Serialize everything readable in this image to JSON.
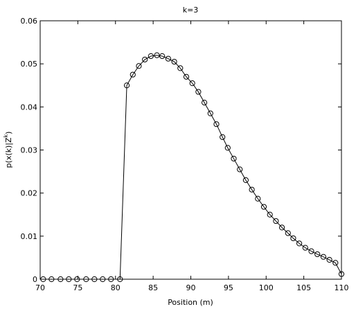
{
  "chart_data": {
    "type": "line",
    "title": "k=3",
    "xlabel": "Position (m)",
    "ylabel": {
      "base": "p(x(k)|Z",
      "sup": "k",
      "tail": ")"
    },
    "xlim": [
      70,
      110
    ],
    "xticks": [
      70,
      75,
      80,
      85,
      90,
      95,
      100,
      105,
      110
    ],
    "ylim": [
      0,
      0.06
    ],
    "yticks": [
      0,
      0.01,
      0.02,
      0.03,
      0.04,
      0.05,
      0.06
    ],
    "color": "#000000",
    "marker": "circle",
    "x": [
      70.4,
      71.5,
      72.7,
      73.8,
      74.9,
      76.1,
      77.2,
      78.3,
      79.4,
      80.6,
      81.5,
      82.3,
      83.1,
      83.9,
      84.7,
      85.5,
      86.2,
      87.0,
      87.8,
      88.6,
      89.4,
      90.2,
      91.0,
      91.8,
      92.6,
      93.4,
      94.2,
      94.9,
      95.7,
      96.5,
      97.3,
      98.1,
      98.9,
      99.7,
      100.5,
      101.3,
      102.1,
      102.9,
      103.6,
      104.4,
      105.2,
      106.0,
      106.8,
      107.6,
      108.4,
      109.2,
      110.0
    ],
    "values": [
      0,
      0,
      0,
      0,
      0,
      0,
      0,
      0,
      0,
      0,
      0.045,
      0.0475,
      0.0495,
      0.051,
      0.0518,
      0.052,
      0.0518,
      0.0512,
      0.0505,
      0.049,
      0.047,
      0.0455,
      0.0435,
      0.041,
      0.0385,
      0.036,
      0.033,
      0.0305,
      0.028,
      0.0255,
      0.023,
      0.0208,
      0.0187,
      0.0168,
      0.015,
      0.0135,
      0.012,
      0.0107,
      0.0095,
      0.0083,
      0.0073,
      0.0065,
      0.0058,
      0.0052,
      0.0045,
      0.0038,
      0.0012
    ]
  }
}
